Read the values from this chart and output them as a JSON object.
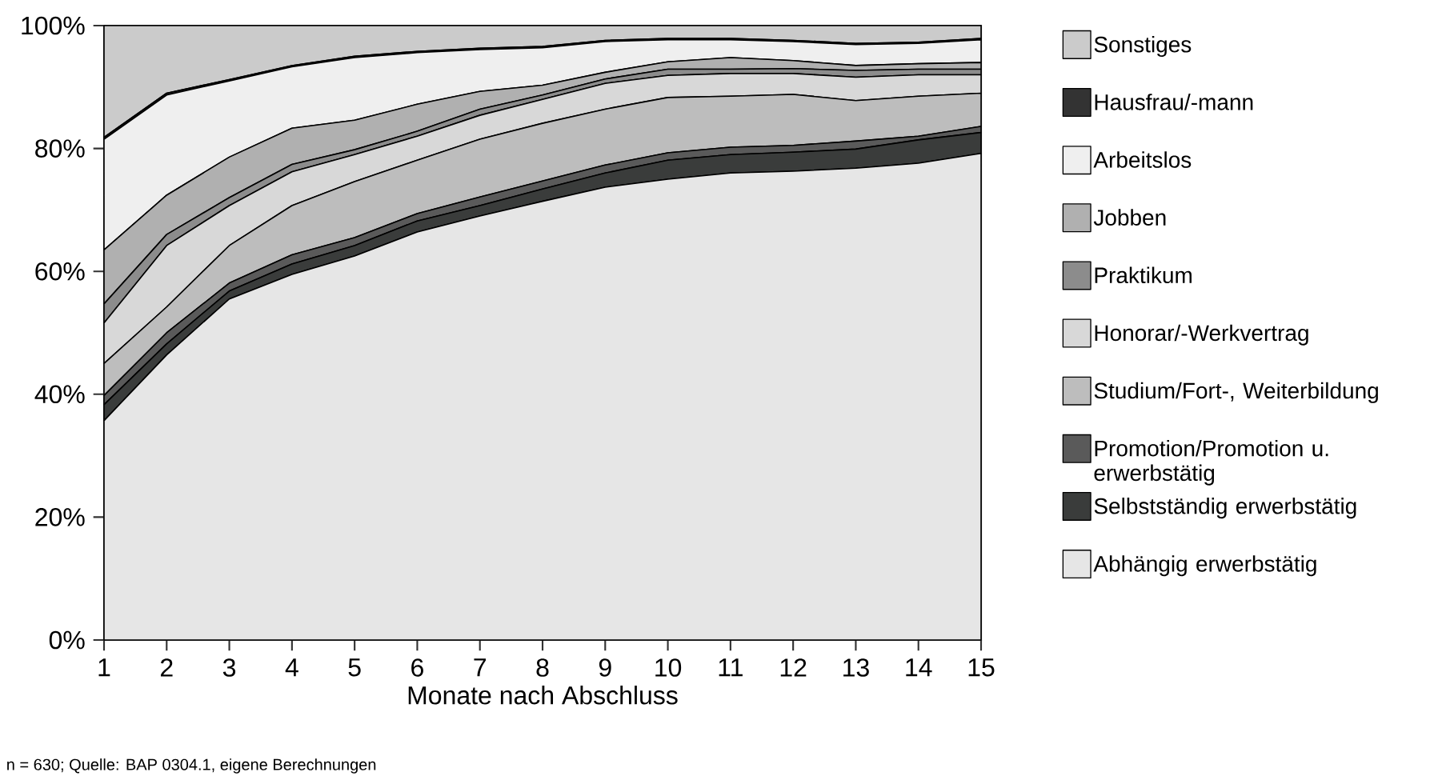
{
  "chart_data": {
    "type": "area",
    "stacked": true,
    "xlabel": "Monate nach Abschluss",
    "x": [
      1,
      2,
      3,
      4,
      5,
      6,
      7,
      8,
      9,
      10,
      11,
      12,
      13,
      14,
      15
    ],
    "xlim": [
      1,
      15
    ],
    "xticks": [
      1,
      2,
      3,
      4,
      5,
      6,
      7,
      8,
      9,
      10,
      11,
      12,
      13,
      14,
      15
    ],
    "ylim": [
      0,
      100
    ],
    "yticks": [
      {
        "value": 0,
        "label": "0%"
      },
      {
        "value": 20,
        "label": "20%"
      },
      {
        "value": 40,
        "label": "40%"
      },
      {
        "value": 60,
        "label": "60%"
      },
      {
        "value": 80,
        "label": "80%"
      },
      {
        "value": 100,
        "label": "100%"
      }
    ],
    "legend": "right",
    "series": [
      {
        "name": "Abhängig erwerbstätig",
        "color": "#e6e6e6",
        "values": [
          35.7,
          46.4,
          55.5,
          59.5,
          62.5,
          66.4,
          69,
          71.4,
          73.7,
          75,
          76,
          76.3,
          76.8,
          77.6,
          79.2
        ]
      },
      {
        "name": "Selbstständig erwerbstätig",
        "color": "#3a3c3b",
        "values": [
          2.6,
          1.8,
          1.3,
          1.7,
          1.7,
          1.8,
          1.7,
          2,
          2.3,
          3.1,
          3,
          3.1,
          3.1,
          3.8,
          3.4
        ]
      },
      {
        "name": "Promotion/Promotion u. erwerbstätig",
        "color": "#5a5a5a",
        "values": [
          1.5,
          1.8,
          1.3,
          1.5,
          1.3,
          1.2,
          1.4,
          1.3,
          1.3,
          1.2,
          1.2,
          1.1,
          1.3,
          0.6,
          1
        ]
      },
      {
        "name": "Studium/Fort-, Weiterbildung",
        "color": "#bdbdbd",
        "values": [
          5.2,
          4.2,
          6.1,
          8,
          9.1,
          8.7,
          9.4,
          9.4,
          9.1,
          9,
          8.3,
          8.3,
          6.6,
          6.5,
          5.4
        ]
      },
      {
        "name": "Honorar/-Werkvertrag",
        "color": "#d8d8d8",
        "values": [
          6.6,
          10,
          6.5,
          5.5,
          4.4,
          3.9,
          3.9,
          3.9,
          4.2,
          3.6,
          3.7,
          3.4,
          3.8,
          3.5,
          3
        ]
      },
      {
        "name": "Praktikum",
        "color": "#8c8c8c",
        "values": [
          3.1,
          1.8,
          1.3,
          1.2,
          0.8,
          0.8,
          1,
          0.7,
          0.7,
          1,
          0.7,
          0.8,
          1.1,
          0.9,
          0.9
        ]
      },
      {
        "name": "Jobben",
        "color": "#b0b0b0",
        "values": [
          8.8,
          6.4,
          6.6,
          5.9,
          4.8,
          4.4,
          2.9,
          1.6,
          1.1,
          1.2,
          1.9,
          1.3,
          0.8,
          0.9,
          1.1
        ]
      },
      {
        "name": "Arbeitslos",
        "color": "#efefef",
        "values": [
          18,
          16.3,
          12.4,
          10,
          10.2,
          8.4,
          6.8,
          6.1,
          5,
          3.6,
          2.9,
          3.1,
          3.4,
          3.3,
          3.7
        ]
      },
      {
        "name": "Hausfrau/-mann",
        "color": "#333333",
        "values": [
          0.3,
          0.3,
          0.2,
          0.2,
          0.2,
          0.2,
          0.2,
          0.2,
          0.2,
          0.2,
          0.2,
          0.2,
          0.2,
          0.2,
          0.2
        ]
      },
      {
        "name": "Sonstiges",
        "color": "#cbcbcb",
        "values": [
          18.2,
          11,
          8.8,
          6.5,
          5,
          4.2,
          3.7,
          3.4,
          2.4,
          2.1,
          2.1,
          2.4,
          2.9,
          2.7,
          2.1
        ]
      }
    ],
    "annotations": [
      "n = 630; Quelle: BAP 0304.1, eigene Berechnungen"
    ]
  }
}
